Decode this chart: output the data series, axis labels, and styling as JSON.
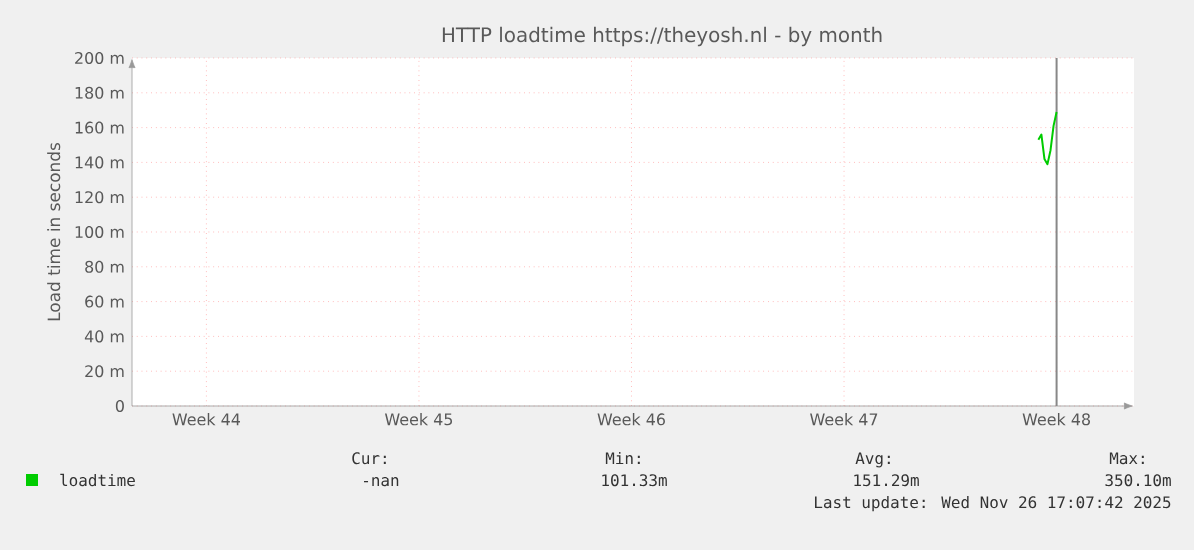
{
  "chart_data": {
    "type": "line",
    "title": "HTTP loadtime https://theyosh.nl - by month",
    "ylabel": "Load time in seconds",
    "categories": [
      null,
      null,
      null,
      null,
      null,
      null,
      null,
      null,
      null,
      null,
      null,
      null,
      null,
      null,
      null,
      null,
      null,
      null,
      null,
      null,
      null,
      null,
      null,
      null,
      "Week 44",
      null,
      null,
      null,
      null,
      null,
      null,
      null,
      null,
      null,
      null,
      null,
      null,
      null,
      null,
      null,
      null,
      null,
      null,
      null,
      null,
      null,
      null,
      null,
      null,
      null,
      null,
      null,
      null,
      null,
      null,
      null,
      null,
      null,
      null,
      null,
      null,
      null,
      null,
      null,
      null,
      null,
      null,
      null,
      null,
      null,
      null,
      null,
      null,
      null,
      null,
      null,
      null,
      null,
      null,
      null,
      null,
      null,
      null,
      null,
      null,
      null,
      null,
      null,
      null,
      null,
      null,
      null,
      null,
      null,
      "Week 45",
      null,
      null,
      null,
      null,
      null,
      null,
      null,
      null,
      null,
      null,
      null,
      null,
      null,
      null,
      null,
      null,
      null,
      null,
      null,
      null,
      null,
      null,
      null,
      null,
      null,
      null,
      null,
      null,
      null,
      null,
      null,
      null,
      null,
      null,
      null,
      null,
      null,
      null,
      null,
      null,
      null,
      null,
      null,
      null,
      null,
      null,
      null,
      null,
      null,
      null,
      null,
      null,
      null,
      null,
      null,
      null,
      null,
      null,
      null,
      null,
      null,
      null,
      null,
      null,
      null,
      null,
      null,
      null,
      null,
      "Week 46",
      null,
      null,
      null,
      null,
      null,
      null,
      null,
      null,
      null,
      null,
      null,
      null,
      null,
      null,
      null,
      null,
      null,
      null,
      null,
      null,
      null,
      null,
      null,
      null,
      null,
      null,
      null,
      null,
      null,
      null,
      null,
      null,
      null,
      null,
      null,
      null,
      null,
      null,
      null,
      null,
      null,
      null,
      null,
      null,
      null,
      null,
      null,
      null,
      null,
      null,
      null,
      null,
      null,
      null,
      null,
      null,
      null,
      null,
      null,
      null,
      null,
      null,
      null,
      null,
      null,
      null,
      null,
      null,
      null,
      "Week 47",
      null,
      null,
      null,
      null,
      null,
      null,
      null,
      null,
      null,
      null,
      null,
      null,
      null,
      null,
      null,
      null,
      null,
      null,
      null,
      null,
      null,
      null,
      null,
      null,
      null,
      null,
      null,
      null,
      null,
      null,
      null,
      null,
      null,
      null,
      null,
      null,
      null,
      null,
      null,
      null,
      null,
      null,
      null,
      null,
      null,
      null,
      null,
      null,
      null,
      null,
      null,
      null,
      null,
      null,
      null,
      null,
      null,
      null,
      null,
      null,
      null,
      null,
      null,
      null,
      null,
      null,
      null,
      null,
      null,
      "Week 48",
      null,
      null,
      null,
      null,
      null,
      null,
      null,
      null,
      null,
      null,
      null,
      null,
      null,
      null,
      null,
      null,
      null,
      null,
      null,
      null,
      null,
      null,
      null,
      null,
      null
    ],
    "series": [
      {
        "name": "loadtime",
        "color": "#00cc00",
        "values": [
          null,
          null,
          null,
          null,
          null,
          null,
          null,
          null,
          null,
          null,
          null,
          null,
          null,
          null,
          null,
          null,
          null,
          null,
          null,
          null,
          null,
          null,
          null,
          null,
          null,
          null,
          null,
          null,
          null,
          null,
          null,
          null,
          null,
          null,
          null,
          null,
          null,
          null,
          null,
          null,
          null,
          null,
          null,
          null,
          null,
          null,
          null,
          null,
          null,
          null,
          null,
          null,
          null,
          null,
          null,
          null,
          null,
          null,
          null,
          null,
          null,
          null,
          null,
          null,
          null,
          null,
          null,
          null,
          null,
          null,
          null,
          null,
          null,
          null,
          null,
          null,
          null,
          null,
          null,
          null,
          null,
          null,
          null,
          null,
          null,
          null,
          null,
          null,
          null,
          null,
          null,
          null,
          null,
          null,
          null,
          null,
          null,
          null,
          null,
          null,
          null,
          null,
          null,
          null,
          null,
          null,
          null,
          null,
          null,
          null,
          null,
          null,
          null,
          null,
          null,
          null,
          null,
          null,
          null,
          null,
          null,
          null,
          null,
          null,
          null,
          null,
          null,
          null,
          null,
          null,
          null,
          null,
          null,
          null,
          null,
          null,
          null,
          null,
          null,
          null,
          null,
          null,
          null,
          null,
          null,
          null,
          null,
          null,
          null,
          null,
          null,
          null,
          null,
          null,
          null,
          null,
          null,
          null,
          null,
          null,
          null,
          null,
          null,
          null,
          null,
          null,
          null,
          null,
          null,
          null,
          null,
          null,
          null,
          null,
          null,
          null,
          null,
          null,
          null,
          null,
          null,
          null,
          null,
          null,
          null,
          null,
          null,
          null,
          null,
          null,
          null,
          null,
          null,
          null,
          null,
          null,
          null,
          null,
          null,
          null,
          null,
          null,
          null,
          null,
          null,
          null,
          null,
          null,
          null,
          null,
          null,
          null,
          null,
          null,
          null,
          null,
          null,
          null,
          null,
          null,
          null,
          null,
          null,
          null,
          null,
          null,
          null,
          null,
          null,
          null,
          null,
          null,
          null,
          null,
          null,
          null,
          null,
          null,
          null,
          null,
          null,
          null,
          null,
          null,
          null,
          null,
          null,
          null,
          null,
          null,
          null,
          null,
          null,
          null,
          null,
          null,
          null,
          null,
          null,
          null,
          null,
          null,
          null,
          null,
          null,
          null,
          null,
          null,
          null,
          null,
          null,
          null,
          null,
          null,
          null,
          null,
          null,
          null,
          null,
          null,
          null,
          null,
          null,
          null,
          null,
          null,
          null,
          null,
          null,
          null,
          null,
          null,
          null,
          null,
          null,
          null,
          null,
          null,
          153,
          156,
          142,
          139,
          147,
          161,
          169,
          null,
          null,
          null,
          null,
          null,
          null,
          null,
          null,
          null,
          null,
          null,
          null,
          null,
          null,
          null,
          null,
          null,
          null,
          null,
          null,
          null,
          null,
          null,
          null,
          null
        ]
      }
    ],
    "ylim": [
      0,
      200
    ],
    "yticks": [
      {
        "value": 0,
        "label": "0"
      },
      {
        "value": 20,
        "label": "20 m"
      },
      {
        "value": 40,
        "label": "40 m"
      },
      {
        "value": 60,
        "label": "60 m"
      },
      {
        "value": 80,
        "label": "80 m"
      },
      {
        "value": 100,
        "label": "100 m"
      },
      {
        "value": 120,
        "label": "120 m"
      },
      {
        "value": 140,
        "label": "140 m"
      },
      {
        "value": 160,
        "label": "160 m"
      },
      {
        "value": 180,
        "label": "180 m"
      },
      {
        "value": 200,
        "label": "200 m"
      }
    ],
    "ref_lines": [
      {
        "axis": "x",
        "value": "Week 48",
        "color": "#888888"
      }
    ],
    "grid": true,
    "legend": "bottom left",
    "annotations": [
      "Cur:",
      "Min:",
      "Avg:",
      "Max:",
      "-nan",
      "101.33m",
      "151.29m",
      "350.10m",
      "Last update: Wed Nov 26 17:07:42 2025"
    ]
  }
}
